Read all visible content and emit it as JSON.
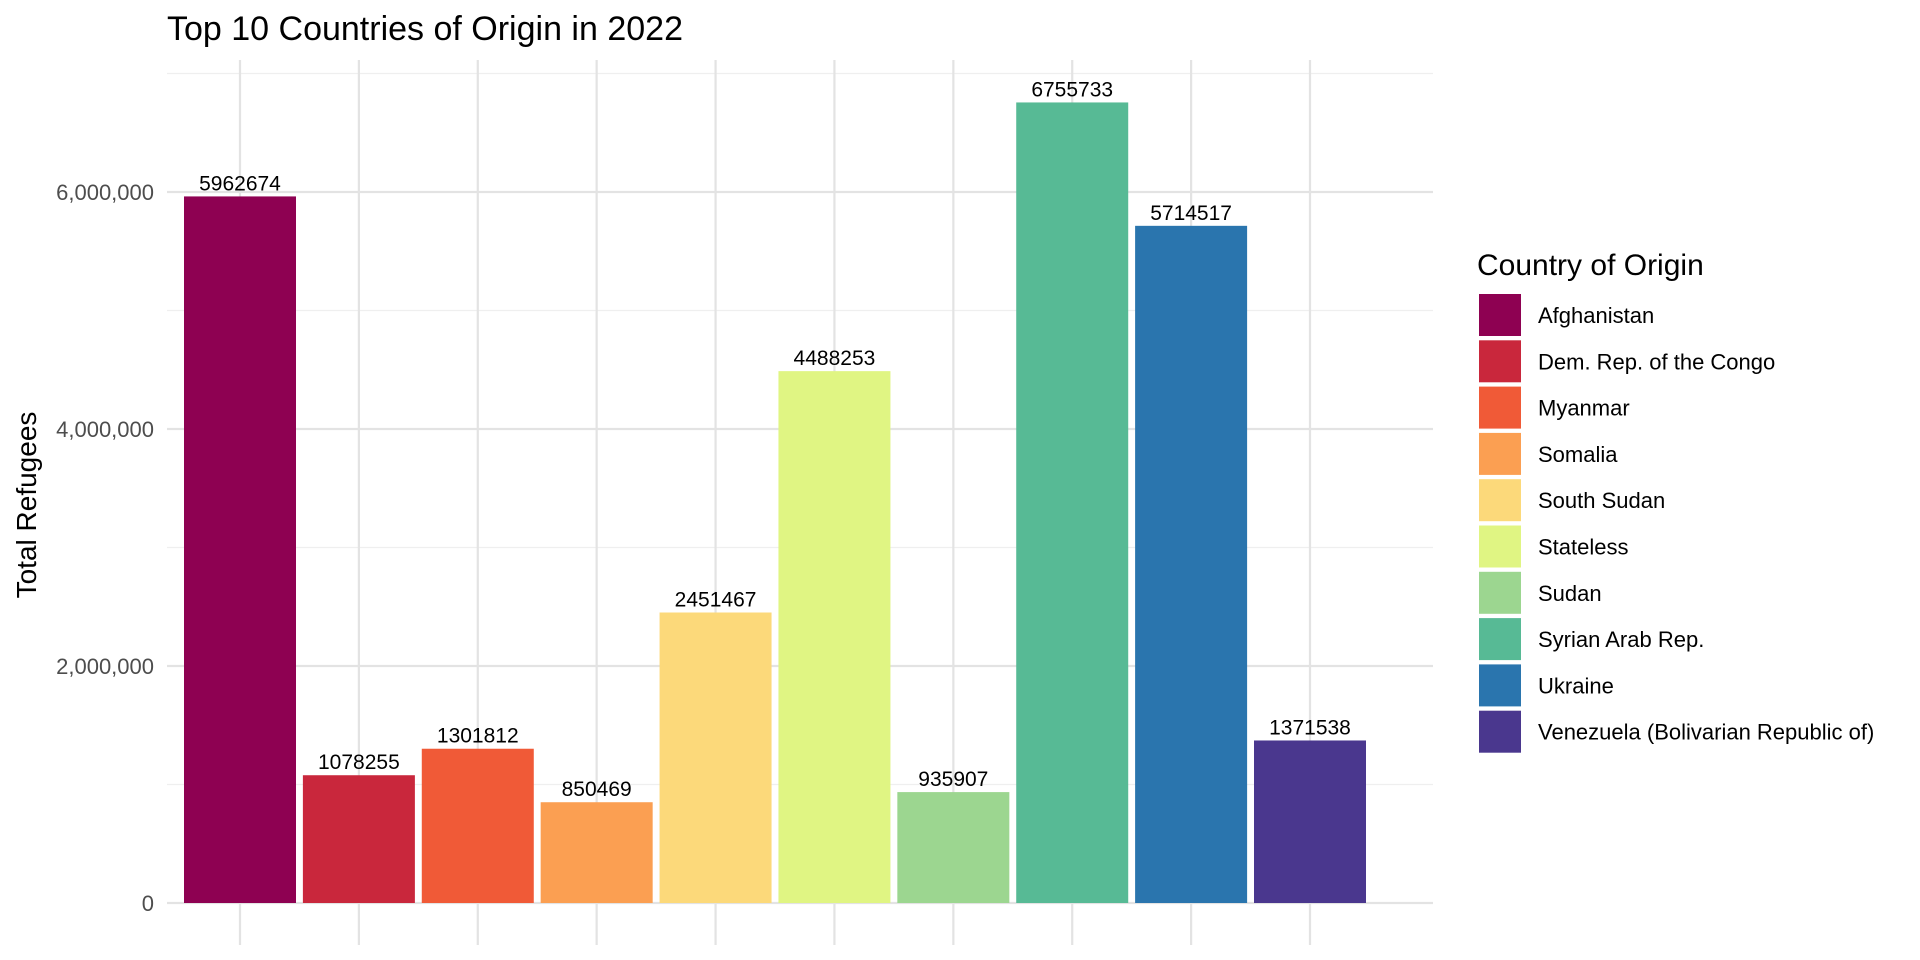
{
  "chart_data": {
    "type": "bar",
    "title": "Top 10 Countries of Origin in 2022",
    "xlabel": "",
    "ylabel": "Total Refugees",
    "ylim": [
      0,
      7000000
    ],
    "yticks": [
      0,
      2000000,
      4000000,
      6000000
    ],
    "ytick_labels": [
      "0",
      "2,000,000",
      "4,000,000",
      "6,000,000"
    ],
    "grid": true,
    "legend": {
      "title": "Country of Origin",
      "position": "right"
    },
    "categories": [
      "Afghanistan",
      "Dem. Rep. of the Congo",
      "Myanmar",
      "Somalia",
      "South Sudan",
      "Stateless",
      "Sudan",
      "Syrian Arab Rep.",
      "Ukraine",
      "Venezuela (Bolivarian Republic of)"
    ],
    "values": [
      5962674,
      1078255,
      1301812,
      850469,
      2451467,
      4488253,
      935907,
      6755733,
      5714517,
      1371538
    ],
    "data_labels": [
      "5962674",
      "1078255",
      "1301812",
      "850469",
      "2451467",
      "4488253",
      "935907",
      "6755733",
      "5714517",
      "1371538"
    ],
    "colors": [
      "#8E0152",
      "#C9273C",
      "#F05A37",
      "#FB9F52",
      "#FCD97A",
      "#E0F583",
      "#9CD690",
      "#57BA95",
      "#2A75AE",
      "#4A378E"
    ]
  }
}
